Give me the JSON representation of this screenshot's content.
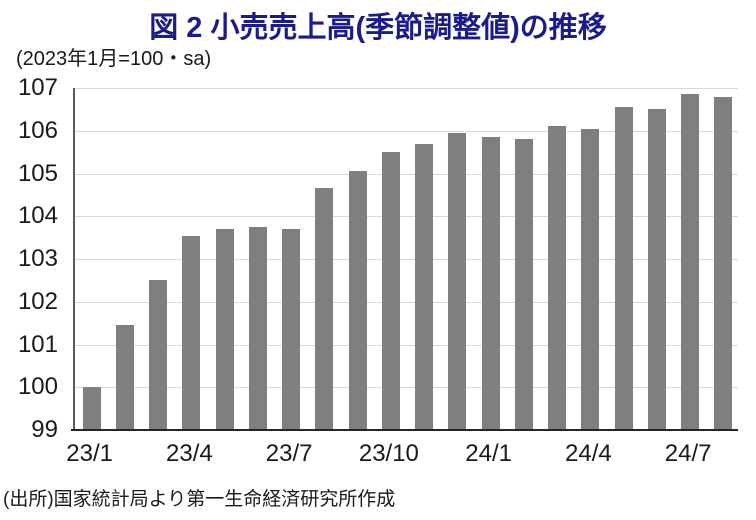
{
  "header": {
    "title": "図 2  小売売上高(季節調整値)の推移",
    "subtitle": "(2023年1月=100・sa)",
    "title_color": "#1b1b8c"
  },
  "footer": {
    "source": "(出所)国家統計局より第一生命経済研究所作成"
  },
  "chart_data": {
    "type": "bar",
    "title": "図 2 小売売上高(季節調整値)の推移",
    "subtitle": "(2023年1月=100・sa)",
    "categories": [
      "23/1",
      "23/2",
      "23/3",
      "23/4",
      "23/5",
      "23/6",
      "23/7",
      "23/8",
      "23/9",
      "23/10",
      "23/11",
      "23/12",
      "24/1",
      "24/2",
      "24/3",
      "24/4",
      "24/5",
      "24/6",
      "24/7",
      "24/8"
    ],
    "values": [
      100.0,
      101.45,
      102.5,
      103.55,
      103.7,
      103.75,
      103.7,
      104.65,
      105.05,
      105.5,
      105.7,
      105.95,
      105.85,
      105.8,
      106.1,
      106.05,
      106.55,
      106.5,
      106.85,
      106.8
    ],
    "shown_x_labels": [
      "23/1",
      "23/4",
      "23/7",
      "23/10",
      "24/1",
      "24/4",
      "24/7"
    ],
    "xlabel": "",
    "ylabel": "",
    "ylim": [
      99,
      107
    ],
    "ytick_step": 1,
    "grid": true,
    "legend_position": "none",
    "bar_color": "#7f7f7f",
    "gridline_color": "#d9d9d9",
    "y_axis_color": "#595959",
    "x_axis_color": "#262626"
  }
}
